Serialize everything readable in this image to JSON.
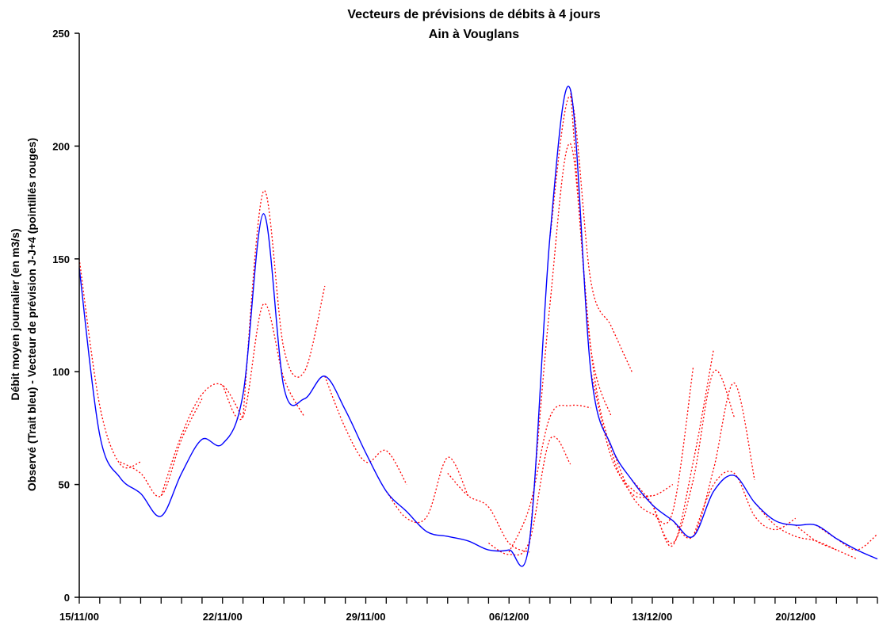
{
  "chart_data": {
    "type": "line",
    "title": "Vecteurs de prévisions de débits à 4 jours",
    "subtitle": "Ain à Vouglans",
    "ylabel_line1": "Débit moyen journalier (en m3/s)",
    "ylabel_line2": "Observé (Trait bleu) - Vecteur de prévision J-J+4 (pointillés rouges)",
    "xlabel": "",
    "x_range_days": [
      0,
      39
    ],
    "x_tick_dates": [
      "15/11/00",
      "22/11/00",
      "29/11/00",
      "06/12/00",
      "13/12/00",
      "20/12/00"
    ],
    "x_tick_day_offsets": [
      0,
      7,
      14,
      21,
      28,
      35
    ],
    "ylim": [
      0,
      250
    ],
    "y_ticks": [
      "0",
      "50",
      "100",
      "150",
      "200",
      "250"
    ],
    "grid": false,
    "legend": "none",
    "colors": {
      "observed": "#0000ff",
      "forecast": "#ff0000",
      "axis": "#000000"
    },
    "observed": {
      "x": [
        0,
        1,
        2,
        3,
        4,
        5,
        6,
        7,
        8,
        9,
        10,
        11,
        12,
        13,
        14,
        15,
        16,
        17,
        18,
        19,
        20,
        21,
        22,
        23,
        24,
        25,
        26,
        27,
        28,
        29,
        30,
        31,
        32,
        33,
        34,
        35,
        36,
        37,
        38,
        39
      ],
      "values": [
        146,
        72,
        53,
        46,
        36,
        55,
        70,
        68,
        90,
        170,
        93,
        88,
        98,
        83,
        64,
        47,
        38,
        29,
        27,
        25,
        21,
        21,
        25,
        160,
        225,
        100,
        67,
        52,
        41,
        34,
        27,
        47,
        54,
        42,
        34,
        32,
        32,
        26,
        21,
        17
      ]
    },
    "forecasts": [
      {
        "x": [
          0,
          1,
          2,
          3
        ],
        "values": [
          150,
          85,
          59,
          60
        ]
      },
      {
        "x": [
          2,
          3,
          4,
          5,
          6
        ],
        "values": [
          60,
          55,
          45,
          70,
          88
        ]
      },
      {
        "x": [
          4,
          5,
          6,
          7,
          8
        ],
        "values": [
          45,
          72,
          90,
          94,
          79
        ]
      },
      {
        "x": [
          7,
          8,
          9,
          10,
          11
        ],
        "values": [
          94,
          80,
          130,
          97,
          80
        ]
      },
      {
        "x": [
          8,
          9,
          10,
          11,
          12
        ],
        "values": [
          80,
          180,
          110,
          100,
          138
        ]
      },
      {
        "x": [
          12,
          13,
          14,
          15,
          16
        ],
        "values": [
          98,
          75,
          60,
          65,
          50
        ]
      },
      {
        "x": [
          15,
          16,
          17,
          18,
          19
        ],
        "values": [
          47,
          35,
          36,
          62,
          45
        ]
      },
      {
        "x": [
          18,
          19,
          20,
          21,
          22
        ],
        "values": [
          55,
          45,
          40,
          24,
          20
        ]
      },
      {
        "x": [
          20,
          21,
          22,
          23,
          24
        ],
        "values": [
          24,
          19,
          25,
          70,
          59
        ]
      },
      {
        "x": [
          21,
          22,
          23,
          24,
          25
        ],
        "values": [
          20,
          40,
          80,
          85,
          84
        ]
      },
      {
        "x": [
          22,
          23,
          24,
          25,
          26
        ],
        "values": [
          24,
          130,
          201,
          110,
          80
        ]
      },
      {
        "x": [
          23,
          24,
          25,
          26,
          27
        ],
        "values": [
          160,
          222,
          140,
          120,
          100
        ]
      },
      {
        "x": [
          24,
          25,
          26,
          27,
          28
        ],
        "values": [
          225,
          110,
          65,
          46,
          45
        ]
      },
      {
        "x": [
          25,
          26,
          27,
          28,
          29
        ],
        "values": [
          100,
          62,
          48,
          45,
          50
        ]
      },
      {
        "x": [
          26,
          27,
          28,
          29,
          30
        ],
        "values": [
          67,
          45,
          37,
          38,
          102
        ]
      },
      {
        "x": [
          27,
          28,
          29,
          30,
          31
        ],
        "values": [
          52,
          41,
          23,
          60,
          110
        ]
      },
      {
        "x": [
          28,
          29,
          30,
          31,
          32
        ],
        "values": [
          41,
          24,
          52,
          100,
          80
        ]
      },
      {
        "x": [
          29,
          30,
          31,
          32,
          33
        ],
        "values": [
          34,
          27,
          57,
          95,
          52
        ]
      },
      {
        "x": [
          30,
          31,
          32,
          33,
          34,
          35
        ],
        "values": [
          27,
          50,
          55,
          36,
          30,
          35
        ]
      },
      {
        "x": [
          33,
          34,
          35,
          36,
          37
        ],
        "values": [
          42,
          32,
          27,
          25,
          21
        ]
      },
      {
        "x": [
          35,
          36,
          37,
          38
        ],
        "values": [
          32,
          25,
          21,
          17
        ]
      },
      {
        "x": [
          36,
          37,
          38,
          39
        ],
        "values": [
          32,
          26,
          21,
          28
        ]
      }
    ]
  }
}
